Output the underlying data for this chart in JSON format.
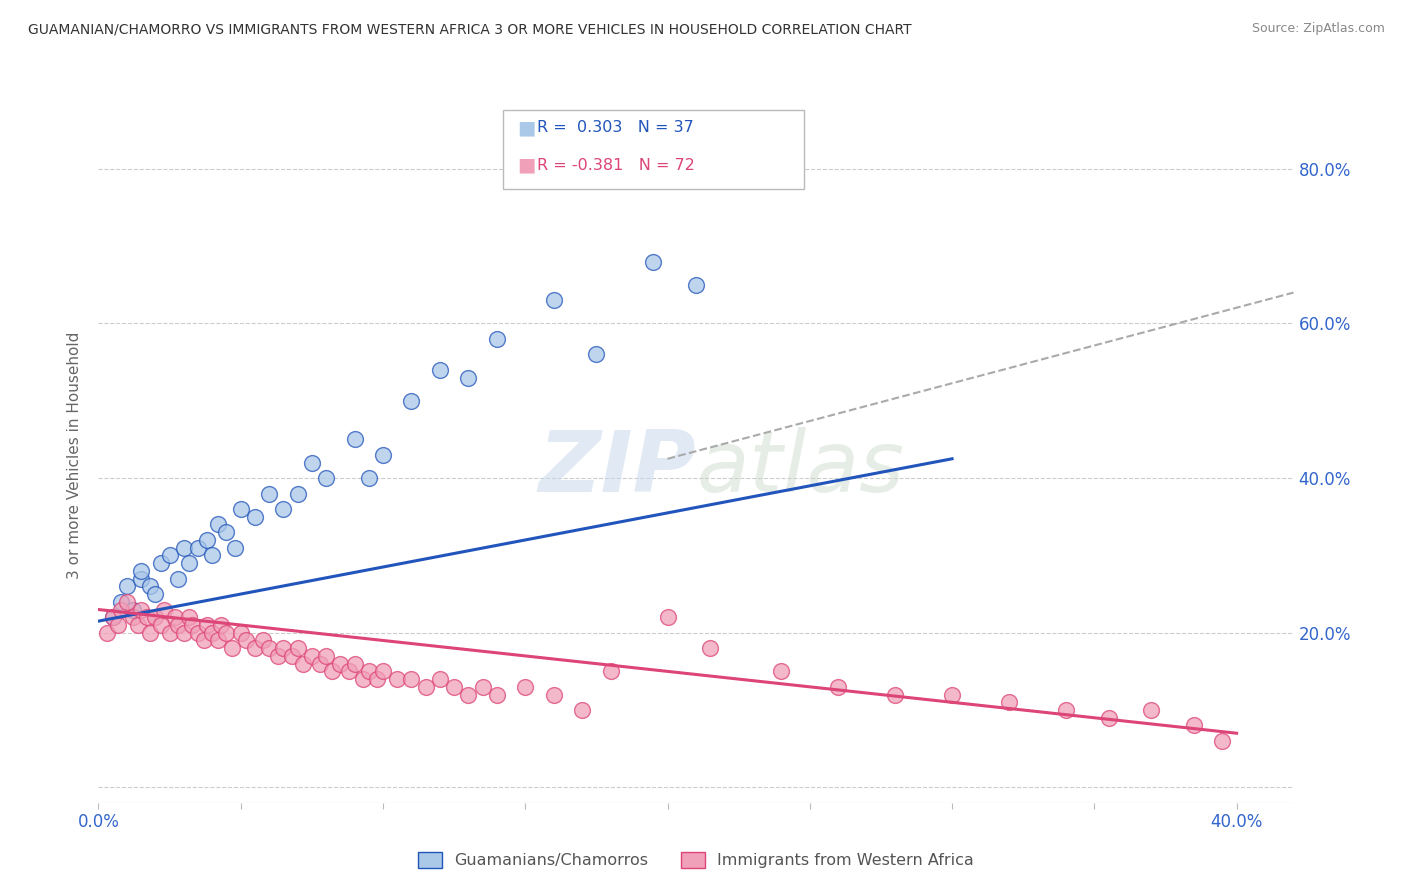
{
  "title": "GUAMANIAN/CHAMORRO VS IMMIGRANTS FROM WESTERN AFRICA 3 OR MORE VEHICLES IN HOUSEHOLD CORRELATION CHART",
  "source": "Source: ZipAtlas.com",
  "ylabel": "3 or more Vehicles in Household",
  "xlim": [
    0.0,
    0.42
  ],
  "ylim": [
    -0.02,
    0.88
  ],
  "xtick_positions": [
    0.0,
    0.05,
    0.1,
    0.15,
    0.2,
    0.25,
    0.3,
    0.35,
    0.4
  ],
  "xticklabels": [
    "0.0%",
    "",
    "",
    "",
    "",
    "",
    "",
    "",
    "40.0%"
  ],
  "ytick_positions": [
    0.0,
    0.2,
    0.4,
    0.6,
    0.8
  ],
  "ytick_labels": [
    "",
    "20.0%",
    "40.0%",
    "60.0%",
    "80.0%"
  ],
  "legend_R1_val": "0.303",
  "legend_N1_val": "37",
  "legend_R2_val": "-0.381",
  "legend_N2_val": "72",
  "blue_color": "#aac8e8",
  "blue_line_color": "#2255bb",
  "pink_color": "#f0a0b8",
  "pink_line_color": "#dd4477",
  "dashed_color": "#aaaaaa",
  "blue_scatter_x": [
    0.005,
    0.008,
    0.01,
    0.012,
    0.015,
    0.015,
    0.018,
    0.02,
    0.022,
    0.025,
    0.028,
    0.03,
    0.032,
    0.035,
    0.038,
    0.04,
    0.042,
    0.045,
    0.048,
    0.05,
    0.055,
    0.06,
    0.065,
    0.07,
    0.075,
    0.08,
    0.09,
    0.095,
    0.1,
    0.11,
    0.12,
    0.13,
    0.14,
    0.16,
    0.175,
    0.195,
    0.21
  ],
  "blue_scatter_y": [
    0.22,
    0.24,
    0.26,
    0.23,
    0.27,
    0.28,
    0.26,
    0.25,
    0.29,
    0.3,
    0.27,
    0.31,
    0.29,
    0.31,
    0.32,
    0.3,
    0.34,
    0.33,
    0.31,
    0.36,
    0.35,
    0.38,
    0.36,
    0.38,
    0.42,
    0.4,
    0.45,
    0.4,
    0.43,
    0.5,
    0.54,
    0.53,
    0.58,
    0.63,
    0.56,
    0.68,
    0.65
  ],
  "pink_scatter_x": [
    0.003,
    0.005,
    0.007,
    0.008,
    0.01,
    0.012,
    0.014,
    0.015,
    0.017,
    0.018,
    0.02,
    0.022,
    0.023,
    0.025,
    0.027,
    0.028,
    0.03,
    0.032,
    0.033,
    0.035,
    0.037,
    0.038,
    0.04,
    0.042,
    0.043,
    0.045,
    0.047,
    0.05,
    0.052,
    0.055,
    0.058,
    0.06,
    0.063,
    0.065,
    0.068,
    0.07,
    0.072,
    0.075,
    0.078,
    0.08,
    0.082,
    0.085,
    0.088,
    0.09,
    0.093,
    0.095,
    0.098,
    0.1,
    0.105,
    0.11,
    0.115,
    0.12,
    0.125,
    0.13,
    0.135,
    0.14,
    0.15,
    0.16,
    0.17,
    0.18,
    0.2,
    0.215,
    0.24,
    0.26,
    0.28,
    0.3,
    0.32,
    0.34,
    0.355,
    0.37,
    0.385,
    0.395
  ],
  "pink_scatter_y": [
    0.2,
    0.22,
    0.21,
    0.23,
    0.24,
    0.22,
    0.21,
    0.23,
    0.22,
    0.2,
    0.22,
    0.21,
    0.23,
    0.2,
    0.22,
    0.21,
    0.2,
    0.22,
    0.21,
    0.2,
    0.19,
    0.21,
    0.2,
    0.19,
    0.21,
    0.2,
    0.18,
    0.2,
    0.19,
    0.18,
    0.19,
    0.18,
    0.17,
    0.18,
    0.17,
    0.18,
    0.16,
    0.17,
    0.16,
    0.17,
    0.15,
    0.16,
    0.15,
    0.16,
    0.14,
    0.15,
    0.14,
    0.15,
    0.14,
    0.14,
    0.13,
    0.14,
    0.13,
    0.12,
    0.13,
    0.12,
    0.13,
    0.12,
    0.1,
    0.15,
    0.22,
    0.18,
    0.15,
    0.13,
    0.12,
    0.12,
    0.11,
    0.1,
    0.09,
    0.1,
    0.08,
    0.06
  ],
  "blue_line_x": [
    0.0,
    0.3
  ],
  "blue_line_y": [
    0.215,
    0.425
  ],
  "pink_line_x": [
    0.0,
    0.4
  ],
  "pink_line_y": [
    0.23,
    0.07
  ],
  "dashed_line_x": [
    0.2,
    0.42
  ],
  "dashed_line_y": [
    0.425,
    0.64
  ],
  "background_color": "#ffffff",
  "grid_color": "#cccccc"
}
